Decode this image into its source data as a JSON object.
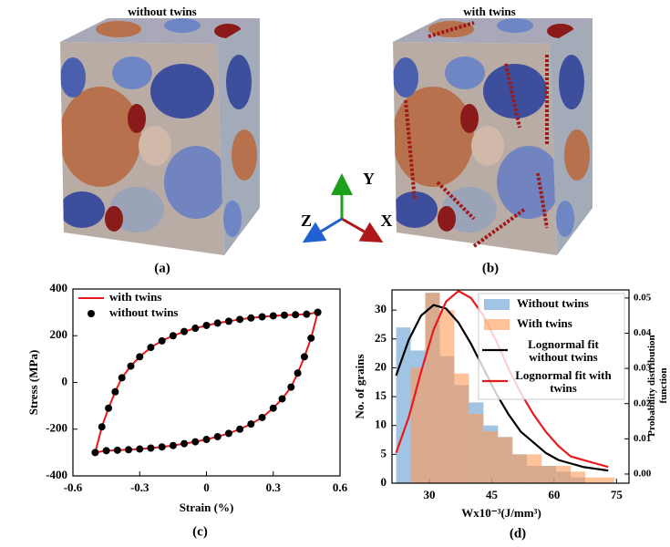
{
  "figure": {
    "panels": [
      {
        "title": "without twins",
        "label": "(a)"
      },
      {
        "title": "with twins",
        "label": "(b)"
      }
    ],
    "axes_triad": {
      "y": "Y",
      "z": "Z",
      "x": "X"
    }
  },
  "chart_data": [
    {
      "type": "line",
      "label": "(c)",
      "xlabel": "Strain (%)",
      "ylabel": "Stress (MPa)",
      "x": [
        0.5,
        0.45,
        0.4,
        0.35,
        0.3,
        0.25,
        0.2,
        0.15,
        0.1,
        0.05,
        0,
        -0.05,
        -0.1,
        -0.15,
        -0.2,
        -0.25,
        -0.3,
        -0.34,
        -0.38,
        -0.41,
        -0.44,
        -0.47,
        -0.5,
        -0.45,
        -0.4,
        -0.35,
        -0.3,
        -0.25,
        -0.2,
        -0.15,
        -0.1,
        -0.05,
        0,
        0.05,
        0.1,
        0.15,
        0.2,
        0.25,
        0.3,
        0.34,
        0.38,
        0.41,
        0.44,
        0.47,
        0.5
      ],
      "series": [
        {
          "name": "with twins",
          "color": "#e8191c",
          "line": true,
          "values": [
            300,
            292,
            290,
            288,
            285,
            281,
            276,
            270,
            262,
            254,
            244,
            232,
            218,
            200,
            178,
            150,
            110,
            70,
            20,
            -40,
            -110,
            -190,
            -300,
            -292,
            -290,
            -288,
            -285,
            -281,
            -276,
            -270,
            -262,
            -254,
            -244,
            -232,
            -218,
            -200,
            -178,
            -150,
            -110,
            -70,
            -20,
            40,
            110,
            190,
            300
          ]
        },
        {
          "name": "without twins",
          "color": "#000000",
          "line": false,
          "marker": "circle",
          "values": [
            300,
            292,
            290,
            288,
            285,
            281,
            276,
            270,
            262,
            254,
            244,
            232,
            218,
            200,
            178,
            150,
            110,
            70,
            20,
            -40,
            -110,
            -190,
            -300,
            -292,
            -290,
            -288,
            -285,
            -281,
            -276,
            -270,
            -262,
            -254,
            -244,
            -232,
            -218,
            -200,
            -178,
            -150,
            -110,
            -70,
            -20,
            40,
            110,
            190,
            300
          ]
        }
      ],
      "xlim": [
        -0.6,
        0.6
      ],
      "xticks": [
        -0.6,
        -0.3,
        0,
        0.3,
        0.6
      ],
      "ylim": [
        -400,
        400
      ],
      "yticks": [
        -400,
        -200,
        0,
        200,
        400
      ],
      "legend": "upper left",
      "grid": false
    },
    {
      "type": "histogram",
      "label": "(d)",
      "xlabel": "Wx10⁻³(J/mm³)",
      "ylabel": "No. of grains",
      "y2label": "Probability distribution function",
      "bins": [
        22,
        25.5,
        29,
        32.5,
        36,
        39.5,
        43,
        46.5,
        50,
        53.5,
        57,
        60.5,
        64,
        67.5,
        71,
        74.5
      ],
      "series": [
        {
          "name": "Without twins",
          "color": "#6fa3d6",
          "alpha": 0.65,
          "values": [
            27,
            23,
            33,
            22,
            17,
            14,
            10,
            8,
            5,
            3,
            3,
            2,
            1,
            0,
            0
          ]
        },
        {
          "name": "With twins",
          "color": "#ff9a55",
          "alpha": 0.6,
          "values": [
            0,
            20,
            33,
            30,
            19,
            12,
            9,
            8,
            5,
            5,
            3,
            3,
            2,
            1,
            1
          ]
        }
      ],
      "lines": [
        {
          "name": "Lognormal fit without twins",
          "color": "#000000",
          "axis": "y2",
          "x": [
            22,
            25,
            28,
            31,
            34,
            37,
            40,
            43,
            46,
            49,
            52,
            55,
            58,
            61,
            64,
            67,
            70,
            73
          ],
          "values": [
            0.028,
            0.038,
            0.045,
            0.048,
            0.047,
            0.043,
            0.037,
            0.03,
            0.023,
            0.017,
            0.012,
            0.009,
            0.006,
            0.004,
            0.003,
            0.002,
            0.0015,
            0.001
          ]
        },
        {
          "name": "Lognormal fit with twins",
          "color": "#e8191c",
          "axis": "y2",
          "x": [
            22,
            25,
            28,
            31,
            34,
            37,
            40,
            43,
            46,
            49,
            52,
            55,
            58,
            61,
            64,
            67,
            70,
            73
          ],
          "values": [
            0.006,
            0.016,
            0.029,
            0.041,
            0.049,
            0.052,
            0.05,
            0.045,
            0.038,
            0.03,
            0.023,
            0.017,
            0.012,
            0.008,
            0.005,
            0.004,
            0.003,
            0.002
          ]
        }
      ],
      "xlim": [
        21,
        78
      ],
      "xticks": [
        30,
        45,
        60,
        75
      ],
      "ylim": [
        0,
        33.5
      ],
      "yticks": [
        0,
        5,
        10,
        15,
        20,
        25,
        30
      ],
      "y2lim": [
        -0.0026,
        0.0523
      ],
      "y2ticks": [
        {
          "value": 0,
          "label": "0.00"
        },
        {
          "value": 0.01,
          "label": "0.01"
        },
        {
          "value": 0.02,
          "label": "0.02"
        },
        {
          "value": 0.03,
          "label": "0.03"
        },
        {
          "value": 0.04,
          "label": "0.04"
        },
        {
          "value": 0.05,
          "label": "0.05"
        }
      ],
      "legend": "upper right",
      "grid": false
    }
  ]
}
